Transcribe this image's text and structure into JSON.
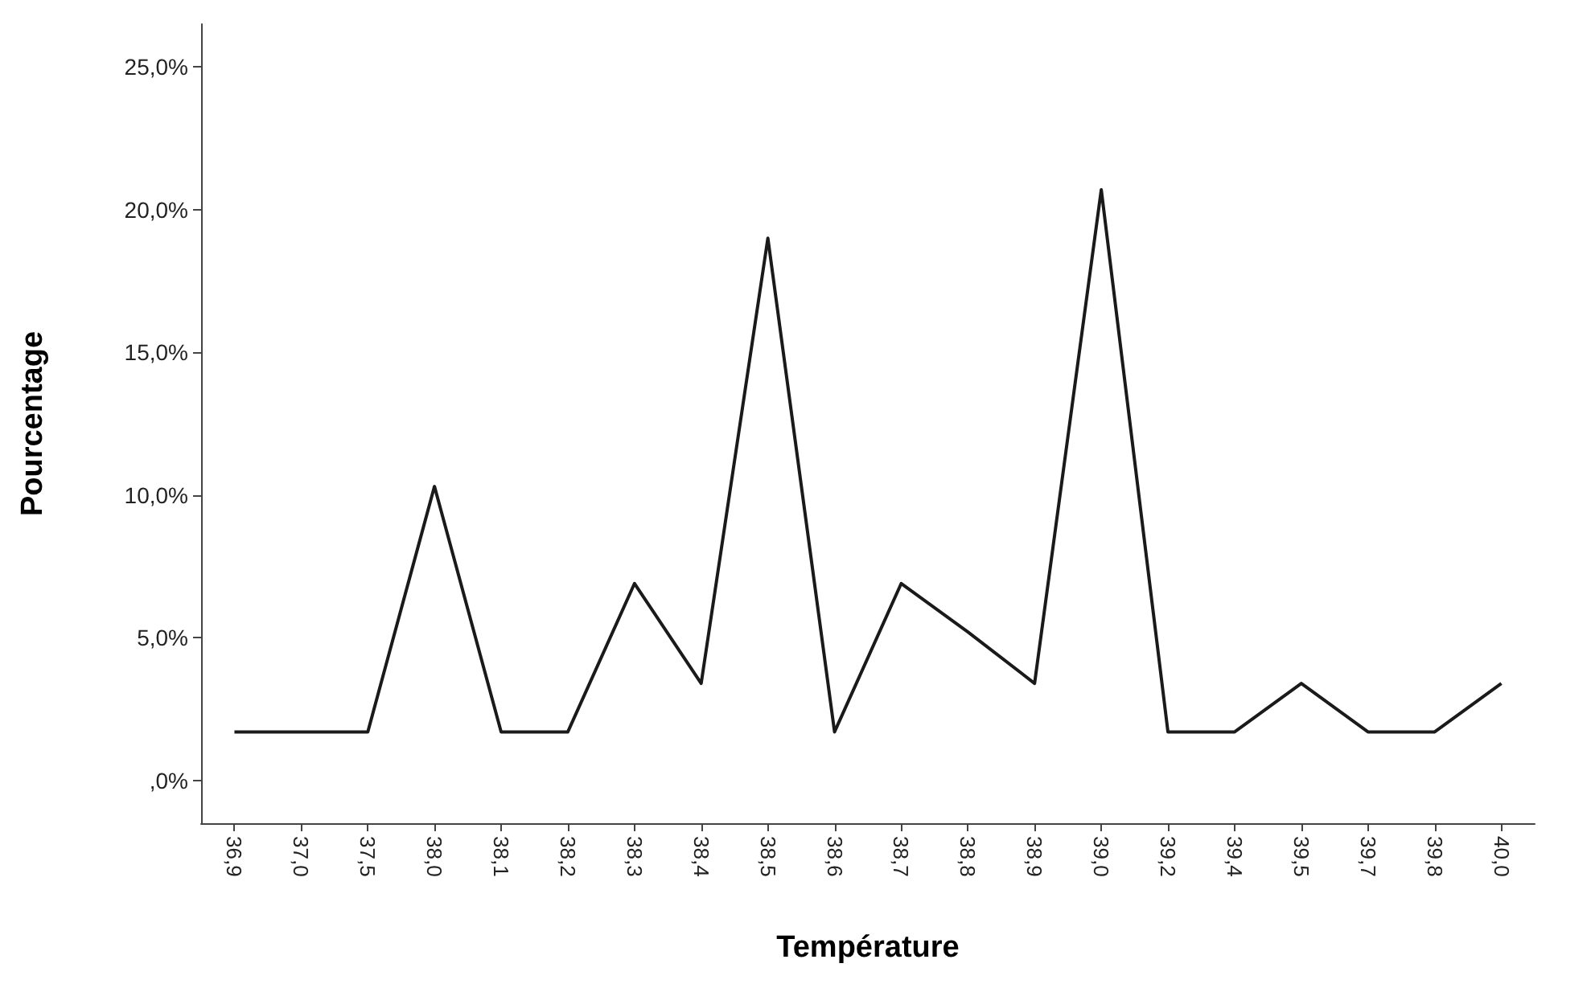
{
  "chart_data": {
    "type": "line",
    "xlabel": "Température",
    "ylabel": "Pourcentage",
    "categories": [
      "36,9",
      "37,0",
      "37,5",
      "38,0",
      "38,1",
      "38,2",
      "38,3",
      "38,4",
      "38,5",
      "38,6",
      "38,7",
      "38,8",
      "38,9",
      "39,0",
      "39,2",
      "39,4",
      "39,5",
      "39,7",
      "39,8",
      "40,0"
    ],
    "series": [
      {
        "color": "#1a1a1a",
        "values": [
          1.7,
          1.7,
          1.7,
          10.3,
          1.7,
          1.7,
          6.9,
          3.4,
          19.0,
          1.7,
          6.9,
          5.2,
          3.4,
          20.7,
          1.7,
          1.7,
          3.4,
          1.7,
          1.7,
          3.4
        ]
      }
    ],
    "ylim": [
      -1.5,
      26.5
    ],
    "yticks": [
      {
        "value": 0,
        "label": ",0%"
      },
      {
        "value": 5,
        "label": "5,0%"
      },
      {
        "value": 10,
        "label": "10,0%"
      },
      {
        "value": 15,
        "label": "15,0%"
      },
      {
        "value": 20,
        "label": "20,0%"
      },
      {
        "value": 25,
        "label": "25,0%"
      }
    ],
    "grid": false,
    "marker": "none",
    "line_style": "solid"
  }
}
